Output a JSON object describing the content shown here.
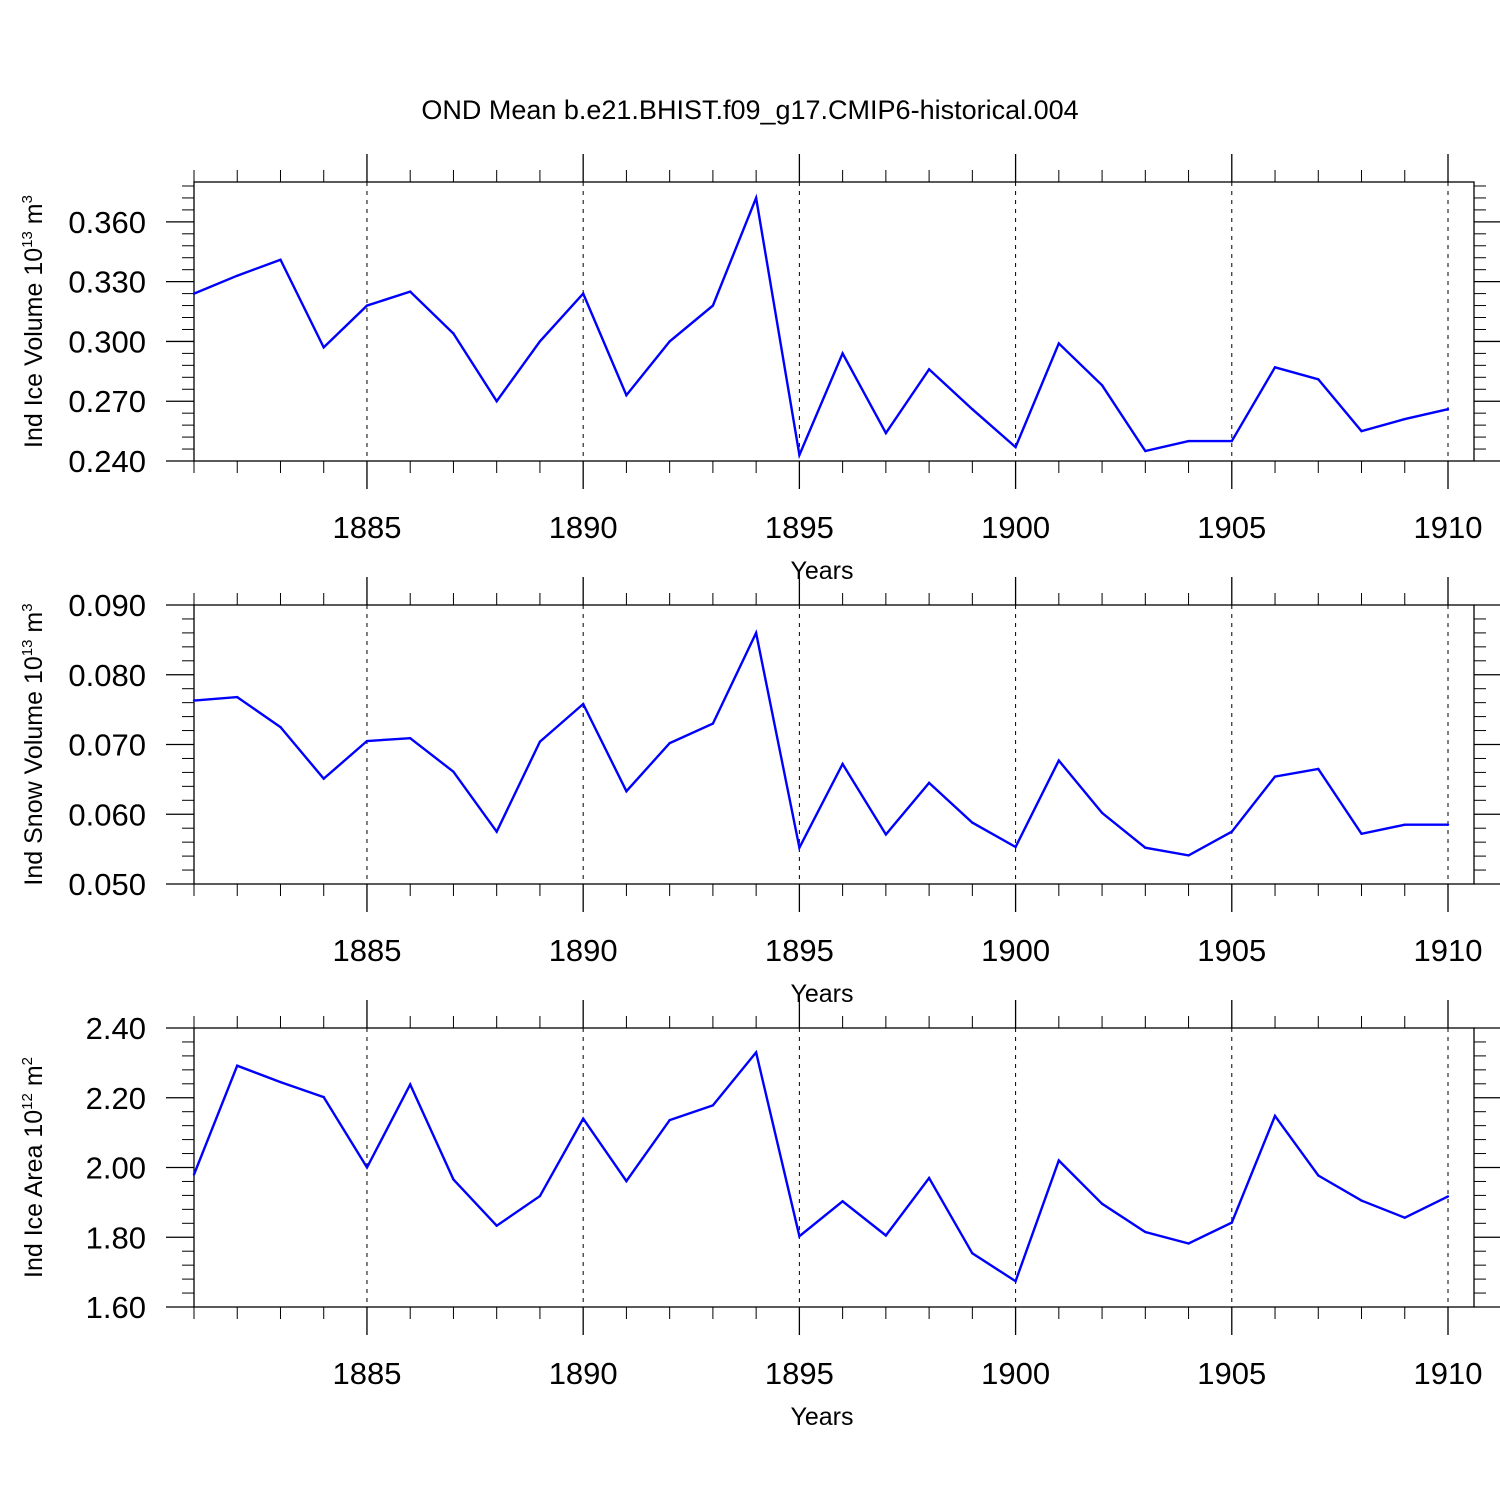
{
  "title": "OND Mean b.e21.BHIST.f09_g17.CMIP6-historical.004",
  "chart_data": [
    {
      "type": "line",
      "ylabel_parts": [
        "Ind Ice Volume 10",
        "13",
        " m",
        "3"
      ],
      "xlabel": "Years",
      "xlim": [
        1881,
        1910
      ],
      "ylim": [
        0.24,
        0.38
      ],
      "yticks": [
        "0.240",
        "0.270",
        "0.300",
        "0.330",
        "0.360"
      ],
      "xticks": [
        "1885",
        "1890",
        "1895",
        "1900",
        "1905",
        "1910"
      ],
      "grid": "vertical dashed at major x ticks",
      "color": "#0000ff",
      "x": [
        1881,
        1882,
        1883,
        1884,
        1885,
        1886,
        1887,
        1888,
        1889,
        1890,
        1891,
        1892,
        1893,
        1894,
        1895,
        1896,
        1897,
        1898,
        1899,
        1900,
        1901,
        1902,
        1903,
        1904,
        1905,
        1906,
        1907,
        1908,
        1909,
        1910
      ],
      "y": [
        0.324,
        0.333,
        0.341,
        0.297,
        0.318,
        0.325,
        0.304,
        0.27,
        0.3,
        0.324,
        0.273,
        0.3,
        0.318,
        0.372,
        0.243,
        0.294,
        0.254,
        0.286,
        0.266,
        0.247,
        0.299,
        0.278,
        0.245,
        0.25,
        0.25,
        0.287,
        0.281,
        0.255,
        0.261,
        0.266
      ]
    },
    {
      "type": "line",
      "ylabel_parts": [
        "Ind Snow Volume 10",
        "13",
        " m",
        "3"
      ],
      "xlabel": "Years",
      "xlim": [
        1881,
        1910
      ],
      "ylim": [
        0.05,
        0.09
      ],
      "yticks": [
        "0.050",
        "0.060",
        "0.070",
        "0.080",
        "0.090"
      ],
      "xticks": [
        "1885",
        "1890",
        "1895",
        "1900",
        "1905",
        "1910"
      ],
      "grid": "vertical dashed at major x ticks",
      "color": "#0000ff",
      "x": [
        1881,
        1882,
        1883,
        1884,
        1885,
        1886,
        1887,
        1888,
        1889,
        1890,
        1891,
        1892,
        1893,
        1894,
        1895,
        1896,
        1897,
        1898,
        1899,
        1900,
        1901,
        1902,
        1903,
        1904,
        1905,
        1906,
        1907,
        1908,
        1909,
        1910
      ],
      "y": [
        0.0763,
        0.0768,
        0.0725,
        0.0651,
        0.0705,
        0.0709,
        0.0661,
        0.0575,
        0.0704,
        0.0758,
        0.0633,
        0.0702,
        0.073,
        0.086,
        0.0552,
        0.0672,
        0.0571,
        0.0645,
        0.0588,
        0.0553,
        0.0677,
        0.0602,
        0.0552,
        0.0541,
        0.0575,
        0.0654,
        0.0665,
        0.0572,
        0.0585,
        0.0585
      ]
    },
    {
      "type": "line",
      "ylabel_parts": [
        "Ind Ice Area 10",
        "12",
        " m",
        "2"
      ],
      "xlabel": "Years",
      "xlim": [
        1881,
        1910
      ],
      "ylim": [
        1.6,
        2.4
      ],
      "yticks": [
        "1.60",
        "1.80",
        "2.00",
        "2.20",
        "2.40"
      ],
      "xticks": [
        "1885",
        "1890",
        "1895",
        "1900",
        "1905",
        "1910"
      ],
      "grid": "vertical dashed at major x ticks",
      "color": "#0000ff",
      "x": [
        1881,
        1882,
        1883,
        1884,
        1885,
        1886,
        1887,
        1888,
        1889,
        1890,
        1891,
        1892,
        1893,
        1894,
        1895,
        1896,
        1897,
        1898,
        1899,
        1900,
        1901,
        1902,
        1903,
        1904,
        1905,
        1906,
        1907,
        1908,
        1909,
        1910
      ],
      "y": [
        1.98,
        2.292,
        2.245,
        2.202,
        2.0,
        2.238,
        1.966,
        1.833,
        1.918,
        2.14,
        1.961,
        2.136,
        2.178,
        2.33,
        1.803,
        1.903,
        1.805,
        1.97,
        1.754,
        1.674,
        2.02,
        1.896,
        1.815,
        1.782,
        1.842,
        2.148,
        1.977,
        1.905,
        1.856,
        1.917
      ]
    }
  ]
}
